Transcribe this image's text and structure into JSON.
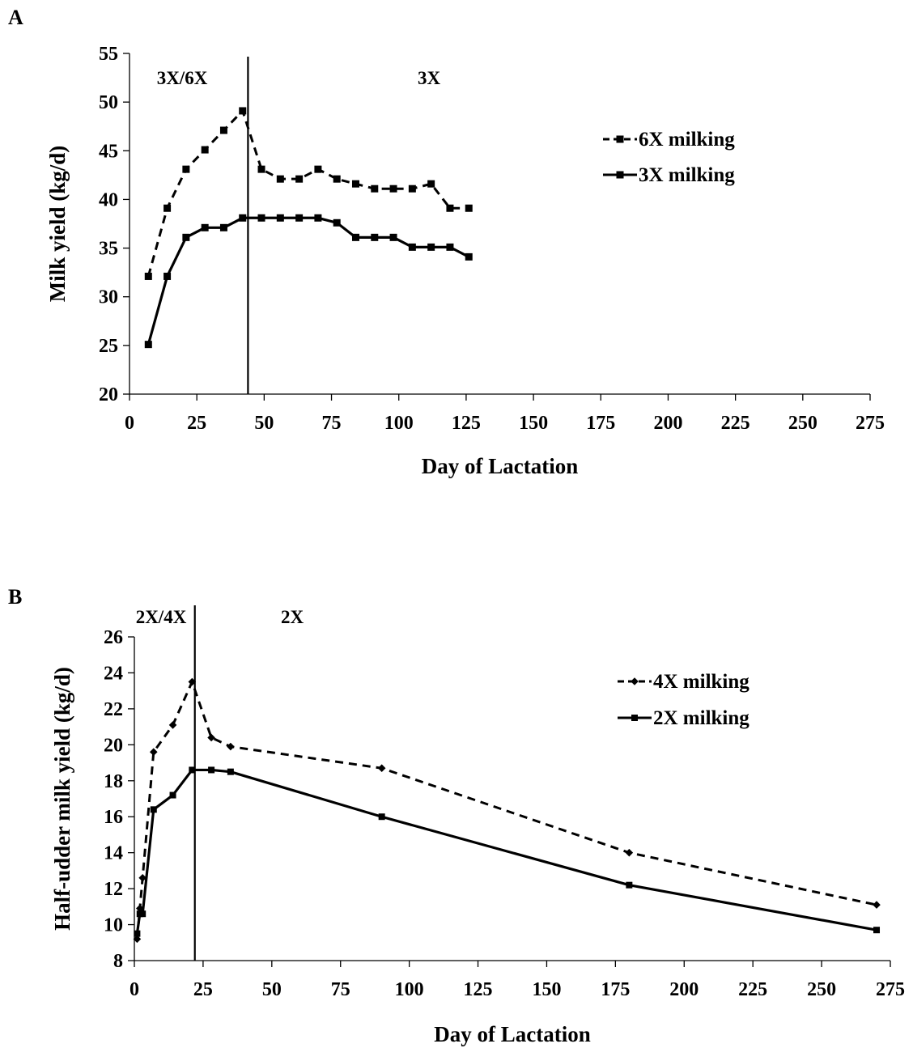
{
  "chart_data": [
    {
      "type": "line",
      "panel_label": "A",
      "xlabel": "Day of Lactation",
      "ylabel": "Milk yield (kg/d)",
      "xlim": [
        0,
        275
      ],
      "ylim": [
        20,
        55
      ],
      "xticks": [
        0,
        25,
        50,
        75,
        100,
        125,
        150,
        175,
        200,
        225,
        250,
        275
      ],
      "yticks": [
        20,
        25,
        30,
        35,
        40,
        45,
        50,
        55
      ],
      "grid": false,
      "legend_position": "upper-right",
      "vline": 44,
      "annotations": [
        "3X/6X",
        "3X"
      ],
      "series": [
        {
          "name": "6X milking",
          "line_style": "dashed",
          "marker": "square",
          "x": [
            7,
            14,
            21,
            28,
            35,
            42,
            49,
            56,
            63,
            70,
            77,
            84,
            91,
            98,
            105,
            112,
            119,
            126
          ],
          "y": [
            32.1,
            39.1,
            43.1,
            45.1,
            47.1,
            49.1,
            43.1,
            42.1,
            42.1,
            43.1,
            42.1,
            41.6,
            41.1,
            41.1,
            41.1,
            41.6,
            39.1,
            39.1
          ]
        },
        {
          "name": "3X milking",
          "line_style": "solid",
          "marker": "square",
          "x": [
            7,
            14,
            21,
            28,
            35,
            42,
            49,
            56,
            63,
            70,
            77,
            84,
            91,
            98,
            105,
            112,
            119,
            126
          ],
          "y": [
            25.1,
            32.1,
            36.1,
            37.1,
            37.1,
            38.1,
            38.1,
            38.1,
            38.1,
            38.1,
            37.6,
            36.1,
            36.1,
            36.1,
            35.1,
            35.1,
            35.1,
            34.1
          ]
        }
      ]
    },
    {
      "type": "line",
      "panel_label": "B",
      "xlabel": "Day of Lactation",
      "ylabel": "Half-udder milk yield (kg/d)",
      "xlim": [
        0,
        275
      ],
      "ylim": [
        8,
        26
      ],
      "xticks": [
        0,
        25,
        50,
        75,
        100,
        125,
        150,
        175,
        200,
        225,
        250,
        275
      ],
      "yticks": [
        8,
        10,
        12,
        14,
        16,
        18,
        20,
        22,
        24,
        26
      ],
      "grid": false,
      "legend_position": "upper-right",
      "vline": 22,
      "annotations": [
        "2X/4X",
        "2X"
      ],
      "series": [
        {
          "name": "4X milking",
          "line_style": "dashed",
          "marker": "diamond",
          "x": [
            1,
            2,
            3,
            7,
            14,
            21,
            28,
            35,
            90,
            180,
            270
          ],
          "y": [
            9.2,
            10.9,
            12.6,
            19.6,
            21.1,
            23.5,
            20.4,
            19.9,
            18.7,
            14.0,
            11.1
          ]
        },
        {
          "name": "2X milking",
          "line_style": "solid",
          "marker": "square",
          "x": [
            1,
            2,
            3,
            7,
            14,
            21,
            28,
            35,
            90,
            180,
            270
          ],
          "y": [
            9.5,
            10.6,
            10.6,
            16.4,
            17.2,
            18.6,
            18.6,
            18.5,
            16.0,
            12.2,
            9.7
          ]
        }
      ]
    }
  ]
}
